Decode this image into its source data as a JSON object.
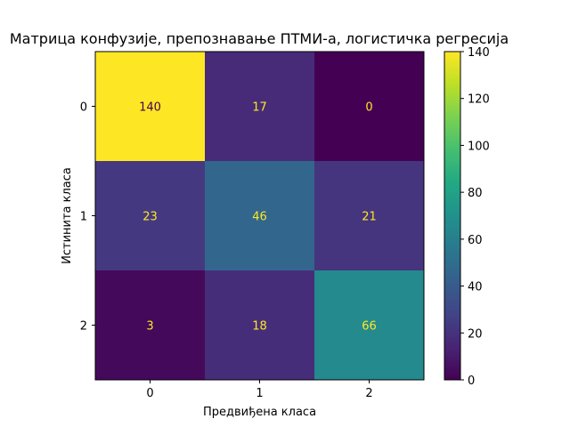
{
  "chart_data": {
    "type": "heatmap",
    "title": "Матрица конфузије, препознавање ПТМИ-а, логистичка регресија",
    "xlabel": "Предвиђена класа",
    "ylabel": "Истинита класа",
    "x_categories": [
      "0",
      "1",
      "2"
    ],
    "y_categories": [
      "0",
      "1",
      "2"
    ],
    "matrix": [
      [
        140,
        17,
        0
      ],
      [
        23,
        46,
        21
      ],
      [
        3,
        18,
        66
      ]
    ],
    "colormap": "viridis",
    "color_range": [
      0,
      140
    ],
    "colorbar_ticks": [
      "0",
      "20",
      "40",
      "60",
      "80",
      "100",
      "120",
      "140"
    ],
    "text_color_dark": "#440154",
    "text_color_light": "#fde725"
  }
}
